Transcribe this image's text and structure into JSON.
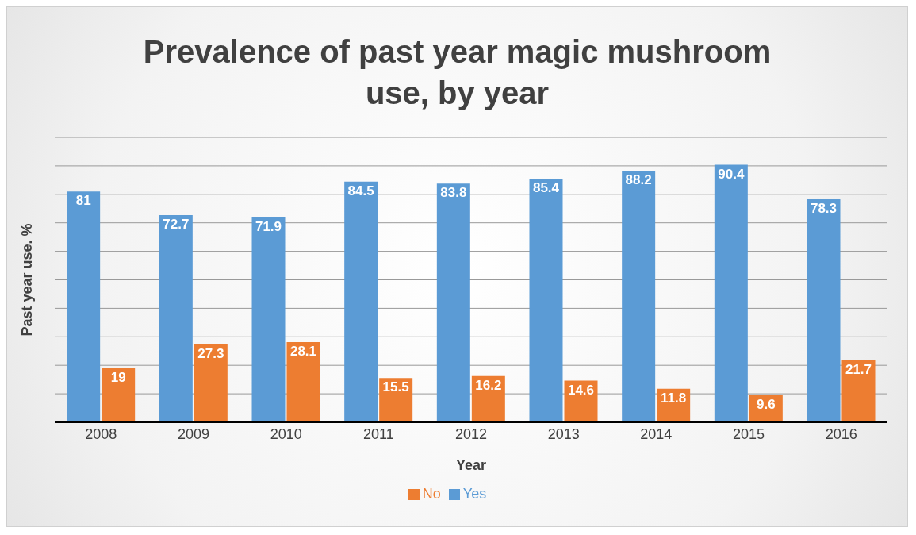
{
  "chart_data": {
    "type": "bar",
    "title": "Prevalence of past year magic mushroom use, by year",
    "xlabel": "Year",
    "ylabel": "Past year use. %",
    "categories": [
      "2008",
      "2009",
      "2010",
      "2011",
      "2012",
      "2013",
      "2014",
      "2015",
      "2016"
    ],
    "series": [
      {
        "name": "Yes",
        "color": "#5b9bd5",
        "values": [
          81,
          72.7,
          71.9,
          84.5,
          83.8,
          85.4,
          88.2,
          90.4,
          78.3
        ]
      },
      {
        "name": "No",
        "color": "#ed7d31",
        "values": [
          19,
          27.3,
          28.1,
          15.5,
          16.2,
          14.6,
          11.8,
          9.6,
          21.7
        ]
      }
    ],
    "ylim": [
      0,
      100
    ],
    "tick_labels": "x",
    "grid": "y",
    "legend": "bottom",
    "data_labels": true
  }
}
